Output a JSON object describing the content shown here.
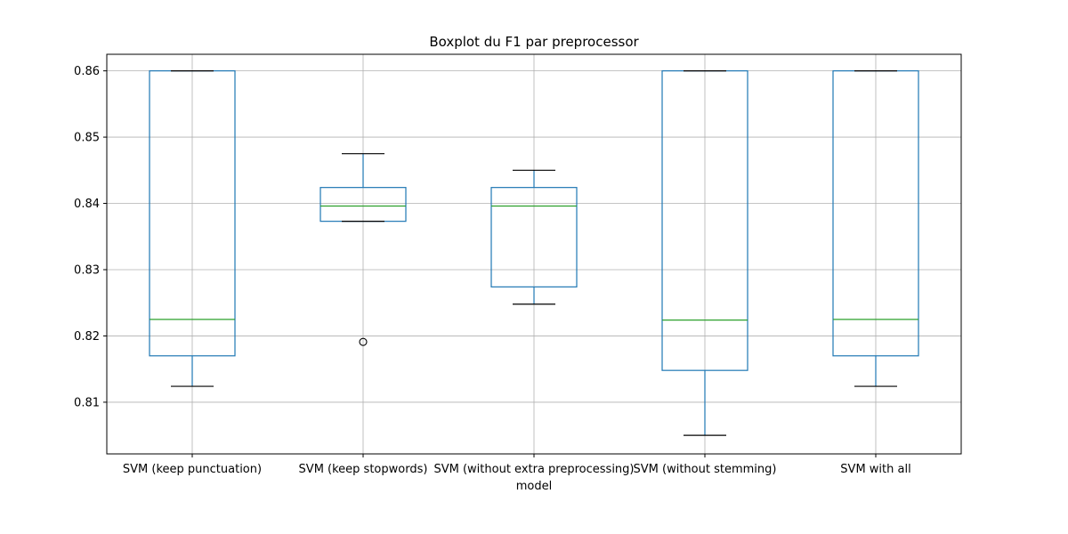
{
  "chart_data": {
    "type": "boxplot",
    "title": "Boxplot du F1 par preprocessor",
    "xlabel": "model",
    "ylabel": "",
    "ylim": [
      0.8022,
      0.8625
    ],
    "yticks": [
      0.81,
      0.82,
      0.83,
      0.84,
      0.85,
      0.86
    ],
    "ytick_labels": [
      "0.81",
      "0.82",
      "0.83",
      "0.84",
      "0.85",
      "0.86"
    ],
    "grid": true,
    "colors": {
      "box": "#1f77b4",
      "median": "#2ca02c",
      "whisker_cap": "#000000",
      "grid": "#b0b0b0"
    },
    "categories": [
      "SVM (keep punctuation)",
      "SVM (keep stopwords)",
      "SVM (without extra preprocessing)",
      "SVM (without stemming)",
      "SVM with all"
    ],
    "boxes": [
      {
        "whislo": 0.8124,
        "q1": 0.817,
        "median": 0.8225,
        "q3": 0.86,
        "whishi": 0.86,
        "fliers": []
      },
      {
        "whislo": 0.8373,
        "q1": 0.8373,
        "median": 0.8396,
        "q3": 0.8424,
        "whishi": 0.8475,
        "fliers": [
          0.8191
        ]
      },
      {
        "whislo": 0.8248,
        "q1": 0.8274,
        "median": 0.8396,
        "q3": 0.8424,
        "whishi": 0.845,
        "fliers": []
      },
      {
        "whislo": 0.805,
        "q1": 0.8148,
        "median": 0.8224,
        "q3": 0.86,
        "whishi": 0.86,
        "fliers": []
      },
      {
        "whislo": 0.8124,
        "q1": 0.817,
        "median": 0.8225,
        "q3": 0.86,
        "whishi": 0.86,
        "fliers": []
      }
    ]
  }
}
